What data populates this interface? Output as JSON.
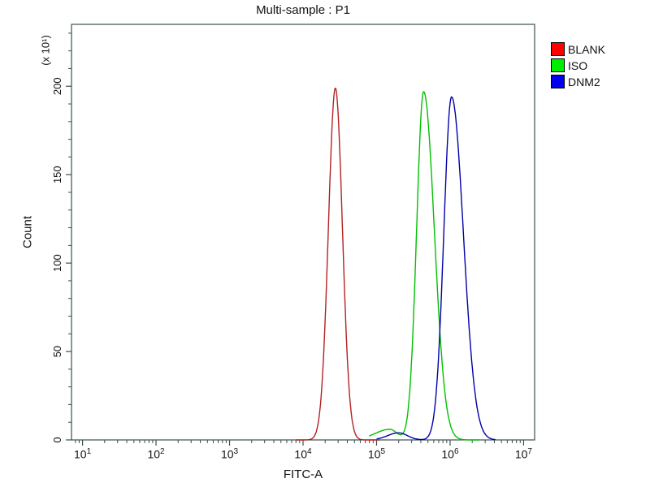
{
  "title": "Multi-sample : P1",
  "legend": {
    "items": [
      {
        "label": "BLANK",
        "swatch_color": "#ff0000"
      },
      {
        "label": "ISO",
        "swatch_color": "#00ee00"
      },
      {
        "label": "DNM2",
        "swatch_color": "#0000ee"
      }
    ]
  },
  "chart_data": {
    "type": "line",
    "title": "Multi-sample : P1",
    "xlabel": "FITC-A",
    "ylabel": "Count",
    "y_axis_multiplier": "(x 10¹)",
    "x_scale": "log10",
    "xlim_log10": [
      0.85,
      7.15
    ],
    "ylim": [
      0,
      235
    ],
    "yticks": [
      0,
      50,
      100,
      150,
      200
    ],
    "y_minor_step": 10,
    "xtick_exponents": [
      1,
      2,
      3,
      4,
      5,
      6,
      7
    ],
    "axis_color": "#3a4f4f",
    "legend_position": "top-right-outside",
    "grid": false,
    "series": [
      {
        "name": "BLANK",
        "color": "#b22222",
        "range_log10": [
          3.9,
          5.05
        ],
        "peaks": [
          {
            "center": 27500,
            "center_log10": 4.44,
            "height": 199,
            "sigma_left": 0.095,
            "sigma_right": 0.095
          }
        ]
      },
      {
        "name": "ISO",
        "color": "#00c000",
        "range_log10": [
          4.9,
          6.4
        ],
        "peaks": [
          {
            "center": 440000,
            "center_log10": 5.64,
            "height": 197,
            "sigma_left": 0.095,
            "sigma_right": 0.145
          },
          {
            "center": 150000,
            "center_log10": 5.18,
            "height": 6,
            "sigma_left": 0.2,
            "sigma_right": 0.1
          }
        ]
      },
      {
        "name": "DNM2",
        "color": "#0000a8",
        "range_log10": [
          5.0,
          6.62
        ],
        "peaks": [
          {
            "center": 1050000,
            "center_log10": 6.02,
            "height": 194,
            "sigma_left": 0.105,
            "sigma_right": 0.16
          },
          {
            "center": 200000,
            "center_log10": 5.3,
            "height": 4,
            "sigma_left": 0.15,
            "sigma_right": 0.12
          }
        ]
      }
    ]
  }
}
